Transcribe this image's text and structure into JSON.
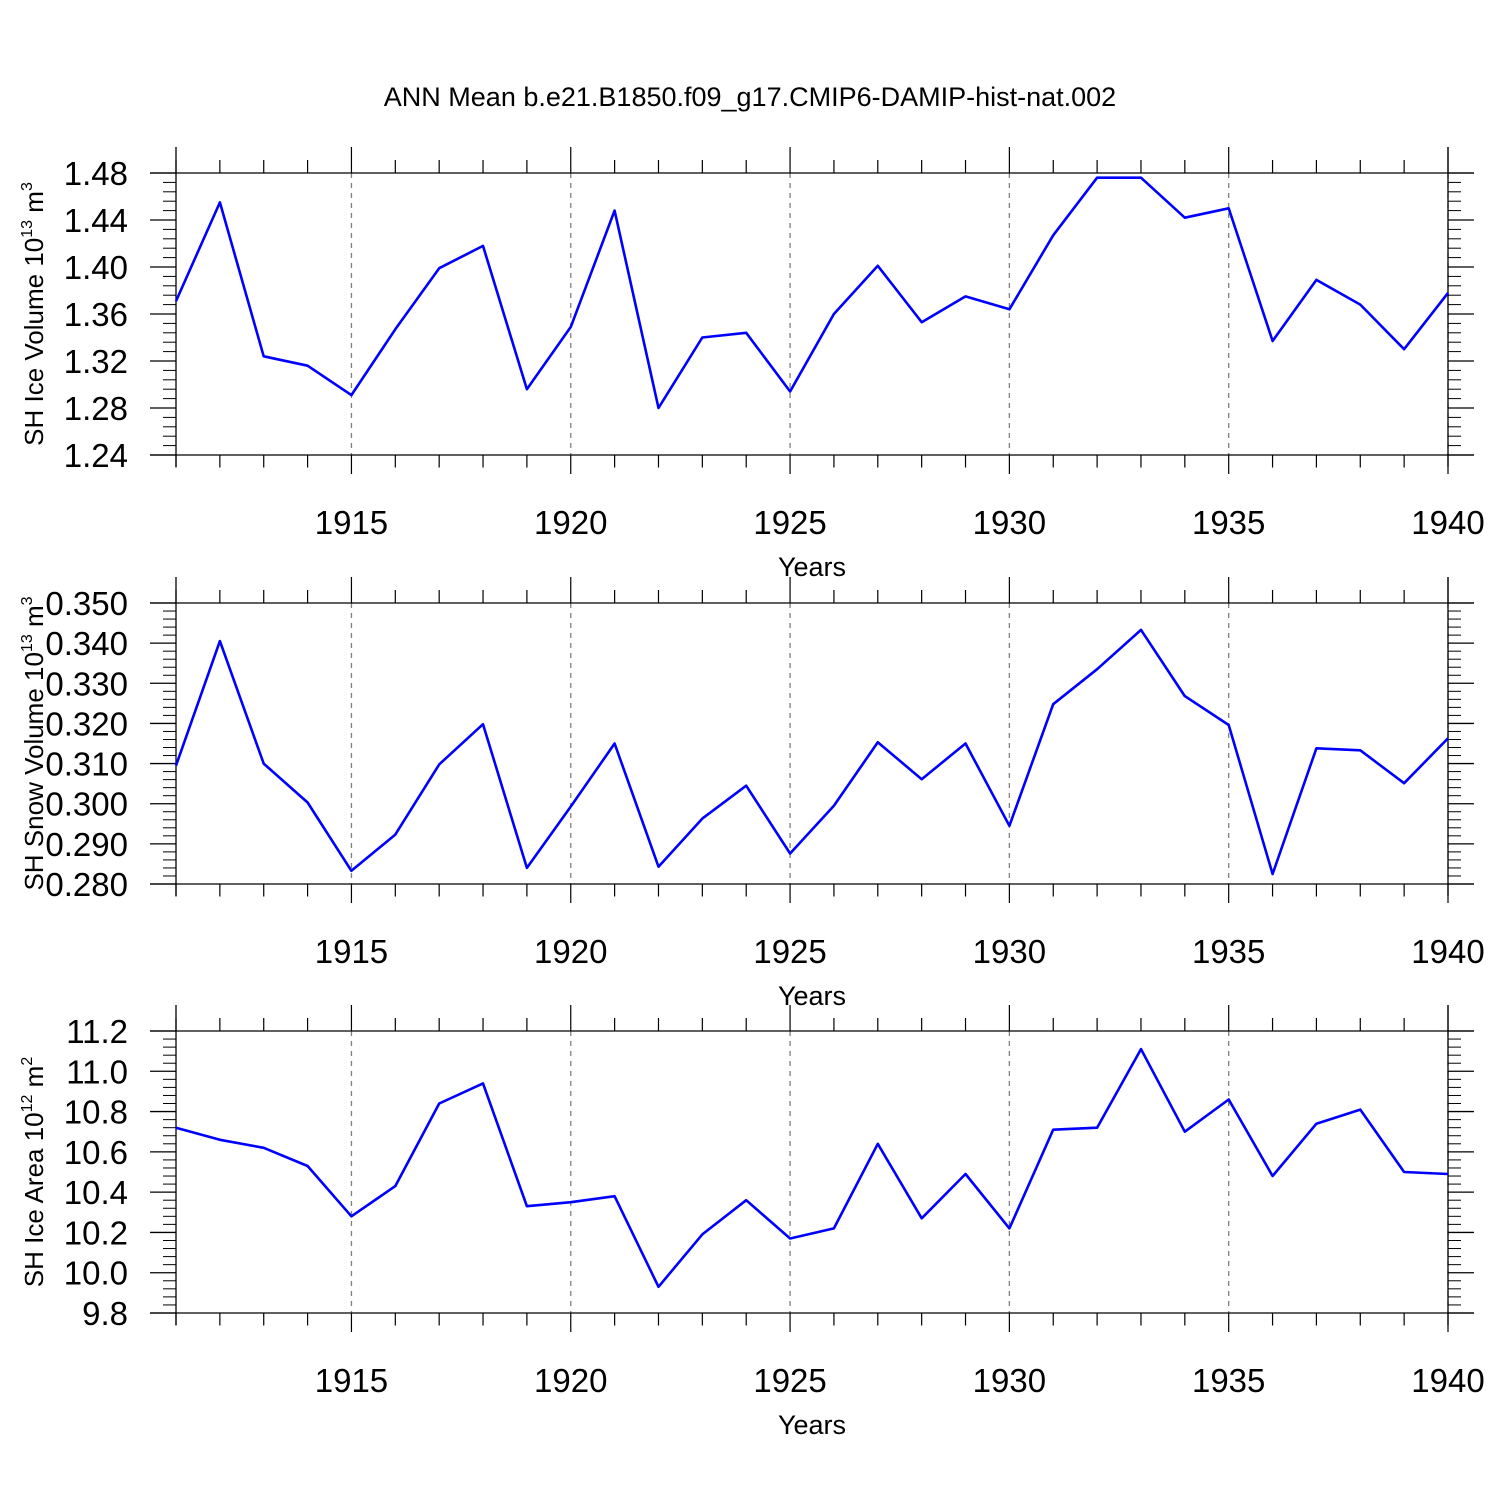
{
  "title": "ANN Mean b.e21.B1850.f09_g17.CMIP6-DAMIP-hist-nat.002",
  "colors": {
    "line": "#0000ff",
    "axis": "#000000",
    "grid": "#808080"
  },
  "chart_data": [
    {
      "type": "line",
      "title": "",
      "xlabel": "Years",
      "ylabel": {
        "base": "SH Ice Volume 10",
        "exponent": "13",
        "unit": " m",
        "unit_exponent": "3"
      },
      "xlim": [
        1911,
        1940
      ],
      "ylim": [
        1.24,
        1.48
      ],
      "yticks": [
        "1.24",
        "1.28",
        "1.32",
        "1.36",
        "1.40",
        "1.44",
        "1.48"
      ],
      "xticks": [
        "1915",
        "1920",
        "1925",
        "1930",
        "1935",
        "1940"
      ],
      "grid": "vertical dashed at labeled years",
      "series": [
        {
          "x": [
            1911,
            1912,
            1913,
            1914,
            1915,
            1916,
            1917,
            1918,
            1919,
            1920,
            1921,
            1922,
            1923,
            1924,
            1925,
            1926,
            1927,
            1928,
            1929,
            1930,
            1931,
            1932,
            1933,
            1934,
            1935,
            1936,
            1937,
            1938,
            1939,
            1940
          ],
          "values": [
            1.371,
            1.455,
            1.324,
            1.316,
            1.291,
            1.347,
            1.399,
            1.418,
            1.296,
            1.349,
            1.448,
            1.28,
            1.34,
            1.344,
            1.294,
            1.36,
            1.401,
            1.353,
            1.375,
            1.364,
            1.427,
            1.476,
            1.476,
            1.442,
            1.45,
            1.337,
            1.389,
            1.368,
            1.33,
            1.378
          ]
        }
      ]
    },
    {
      "type": "line",
      "title": "",
      "xlabel": "Years",
      "ylabel": {
        "base": "SH Snow Volume 10",
        "exponent": "13",
        "unit": " m",
        "unit_exponent": "3"
      },
      "xlim": [
        1911,
        1940
      ],
      "ylim": [
        0.28,
        0.35
      ],
      "yticks": [
        "0.280",
        "0.290",
        "0.300",
        "0.310",
        "0.320",
        "0.330",
        "0.340",
        "0.350"
      ],
      "xticks": [
        "1915",
        "1920",
        "1925",
        "1930",
        "1935",
        "1940"
      ],
      "grid": "vertical dashed at labeled years",
      "series": [
        {
          "x": [
            1911,
            1912,
            1913,
            1914,
            1915,
            1916,
            1917,
            1918,
            1919,
            1920,
            1921,
            1922,
            1923,
            1924,
            1925,
            1926,
            1927,
            1928,
            1929,
            1930,
            1931,
            1932,
            1933,
            1934,
            1935,
            1936,
            1937,
            1938,
            1939,
            1940
          ],
          "values": [
            0.3095,
            0.3405,
            0.31,
            0.3003,
            0.2833,
            0.2923,
            0.3098,
            0.3198,
            0.284,
            0.2993,
            0.315,
            0.2843,
            0.2963,
            0.3045,
            0.2876,
            0.2995,
            0.3153,
            0.3061,
            0.315,
            0.2945,
            0.3248,
            0.3335,
            0.3433,
            0.3268,
            0.3196,
            0.2825,
            0.3138,
            0.3133,
            0.3051,
            0.3163
          ]
        }
      ]
    },
    {
      "type": "line",
      "title": "",
      "xlabel": "Years",
      "ylabel": {
        "base": "SH Ice Area 10",
        "exponent": "12",
        "unit": " m",
        "unit_exponent": "2"
      },
      "xlim": [
        1911,
        1940
      ],
      "ylim": [
        9.8,
        11.2
      ],
      "yticks": [
        "9.8",
        "10.0",
        "10.2",
        "10.4",
        "10.6",
        "10.8",
        "11.0",
        "11.2"
      ],
      "xticks": [
        "1915",
        "1920",
        "1925",
        "1930",
        "1935",
        "1940"
      ],
      "grid": "vertical dashed at labeled years",
      "series": [
        {
          "x": [
            1911,
            1912,
            1913,
            1914,
            1915,
            1916,
            1917,
            1918,
            1919,
            1920,
            1921,
            1922,
            1923,
            1924,
            1925,
            1926,
            1927,
            1928,
            1929,
            1930,
            1931,
            1932,
            1933,
            1934,
            1935,
            1936,
            1937,
            1938,
            1939,
            1940
          ],
          "values": [
            10.72,
            10.66,
            10.62,
            10.53,
            10.28,
            10.43,
            10.84,
            10.94,
            10.33,
            10.35,
            10.38,
            9.93,
            10.19,
            10.36,
            10.17,
            10.22,
            10.64,
            10.27,
            10.49,
            10.22,
            10.71,
            10.72,
            11.11,
            10.7,
            10.86,
            10.48,
            10.74,
            10.81,
            10.5,
            10.49
          ]
        }
      ]
    }
  ]
}
